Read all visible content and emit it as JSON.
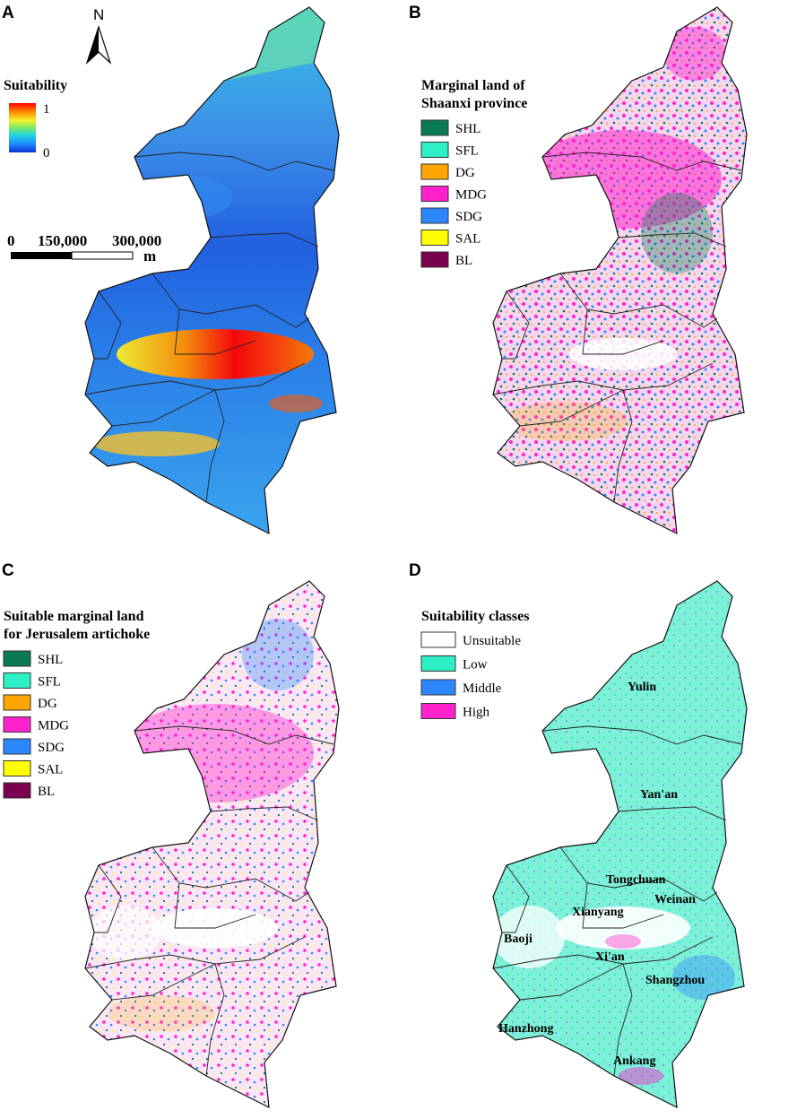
{
  "panels": {
    "A": {
      "label": "A",
      "north_label": "N",
      "legend_title": "Suitability",
      "ramp_max": "1",
      "ramp_min": "0",
      "ramp_colors": [
        "#0a2fd8",
        "#1e90ff",
        "#22d3e0",
        "#7be86a",
        "#f5f02a",
        "#ff8c00",
        "#ff0000"
      ],
      "scale_ticks": [
        "0",
        "150,000",
        "300,000"
      ],
      "scale_unit": "m"
    },
    "B": {
      "label": "B",
      "legend_title_1": "Marginal land of",
      "legend_title_2": "Shaanxi province",
      "items": [
        {
          "code": "SHL",
          "color": "#0a7a55"
        },
        {
          "code": "SFL",
          "color": "#2ef0c6"
        },
        {
          "code": "DG",
          "color": "#ffa500"
        },
        {
          "code": "MDG",
          "color": "#ff22cc"
        },
        {
          "code": "SDG",
          "color": "#2e86ff"
        },
        {
          "code": "SAL",
          "color": "#ffff00"
        },
        {
          "code": "BL",
          "color": "#7a0050"
        }
      ]
    },
    "C": {
      "label": "C",
      "legend_title_1": "Suitable marginal land",
      "legend_title_2": "for Jerusalem artichoke",
      "items": [
        {
          "code": "SHL",
          "color": "#0a7a55"
        },
        {
          "code": "SFL",
          "color": "#2ef0c6"
        },
        {
          "code": "DG",
          "color": "#ffa500"
        },
        {
          "code": "MDG",
          "color": "#ff22cc"
        },
        {
          "code": "SDG",
          "color": "#2e86ff"
        },
        {
          "code": "SAL",
          "color": "#ffff00"
        },
        {
          "code": "BL",
          "color": "#7a0050"
        }
      ]
    },
    "D": {
      "label": "D",
      "legend_title": "Suitability classes",
      "items": [
        {
          "name": "Unsuitable",
          "color": "#ffffff"
        },
        {
          "name": "Low",
          "color": "#2ef0c6"
        },
        {
          "name": "Middle",
          "color": "#2e86ff"
        },
        {
          "name": "High",
          "color": "#ff22cc"
        }
      ],
      "cities": [
        "Yulin",
        "Yan'an",
        "Tongchuan",
        "Weinan",
        "Xianyang",
        "Baoji",
        "Xi'an",
        "Shangzhou",
        "Hanzhong",
        "Ankang"
      ]
    }
  }
}
